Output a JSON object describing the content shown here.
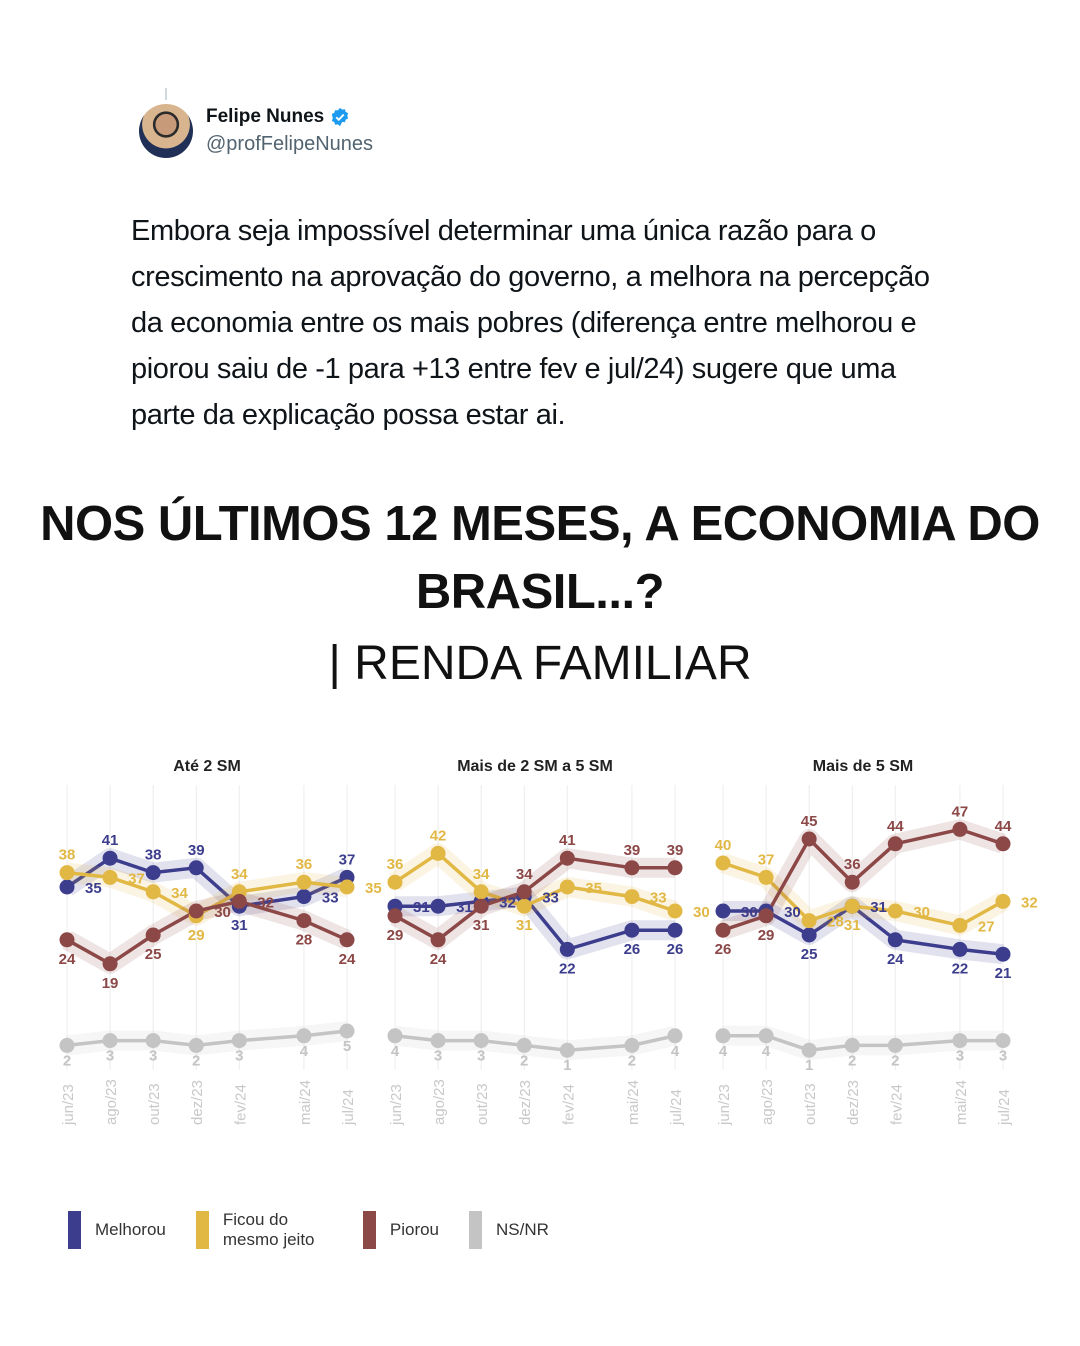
{
  "author": {
    "name": "Felipe Nunes",
    "handle": "@profFelipeNunes",
    "verified": true
  },
  "tweet_text": "Embora seja impossível determinar uma única razão para o crescimento na aprovação do governo, a melhora na percepção da economia entre os mais pobres (diferença entre melhorou e piorou saiu de -1 para +13 entre fev e jul/24) sugere que uma parte da explicação possa estar ai.",
  "headline": {
    "title": "NOS ÚLTIMOS 12 MESES, A ECONOMIA DO BRASIL...?",
    "subtitle": "| RENDA FAMILIAR"
  },
  "colors": {
    "Melhorou": "#3d3d8e",
    "Ficou do mesmo jeito": "#e2b845",
    "Piorou": "#8c4747",
    "NS/NR": "#c4c4c4"
  },
  "legend": [
    "Melhorou",
    "Ficou do mesmo jeito",
    "Piorou",
    "NS/NR"
  ],
  "chart_data": [
    {
      "type": "line",
      "title": "Até 2 SM",
      "categories": [
        "jun/23",
        "ago/23",
        "out/23",
        "dez/23",
        "fev/24",
        "mai/24",
        "jul/24"
      ],
      "ylim": [
        0,
        50
      ],
      "grid": "vertical",
      "series": [
        {
          "name": "Melhorou",
          "values": [
            35,
            41,
            38,
            39,
            31,
            33,
            37
          ]
        },
        {
          "name": "Ficou do mesmo jeito",
          "values": [
            38,
            37,
            34,
            29,
            34,
            36,
            35
          ]
        },
        {
          "name": "Piorou",
          "values": [
            24,
            19,
            25,
            30,
            32,
            28,
            24
          ]
        },
        {
          "name": "NS/NR",
          "values": [
            2,
            3,
            3,
            2,
            3,
            4,
            5
          ]
        }
      ]
    },
    {
      "type": "line",
      "title": "Mais de 2 SM a 5 SM",
      "categories": [
        "jun/23",
        "ago/23",
        "out/23",
        "dez/23",
        "fev/24",
        "mai/24",
        "jul/24"
      ],
      "ylim": [
        0,
        50
      ],
      "grid": "vertical",
      "series": [
        {
          "name": "Melhorou",
          "values": [
            31,
            31,
            32,
            33,
            22,
            26,
            26
          ]
        },
        {
          "name": "Ficou do mesmo jeito",
          "values": [
            36,
            42,
            34,
            31,
            35,
            33,
            30
          ]
        },
        {
          "name": "Piorou",
          "values": [
            29,
            24,
            31,
            34,
            41,
            39,
            39
          ]
        },
        {
          "name": "NS/NR",
          "values": [
            4,
            3,
            3,
            2,
            1,
            2,
            4
          ]
        }
      ]
    },
    {
      "type": "line",
      "title": "Mais de 5 SM",
      "categories": [
        "jun/23",
        "ago/23",
        "out/23",
        "dez/23",
        "fev/24",
        "mai/24",
        "jul/24"
      ],
      "ylim": [
        0,
        50
      ],
      "grid": "vertical",
      "series": [
        {
          "name": "Melhorou",
          "values": [
            30,
            30,
            25,
            31,
            24,
            22,
            21
          ]
        },
        {
          "name": "Ficou do mesmo jeito",
          "values": [
            40,
            37,
            28,
            31,
            30,
            27,
            32
          ]
        },
        {
          "name": "Piorou",
          "values": [
            26,
            29,
            45,
            36,
            44,
            47,
            44
          ]
        },
        {
          "name": "NS/NR",
          "values": [
            4,
            4,
            1,
            2,
            2,
            3,
            3
          ]
        }
      ]
    }
  ]
}
